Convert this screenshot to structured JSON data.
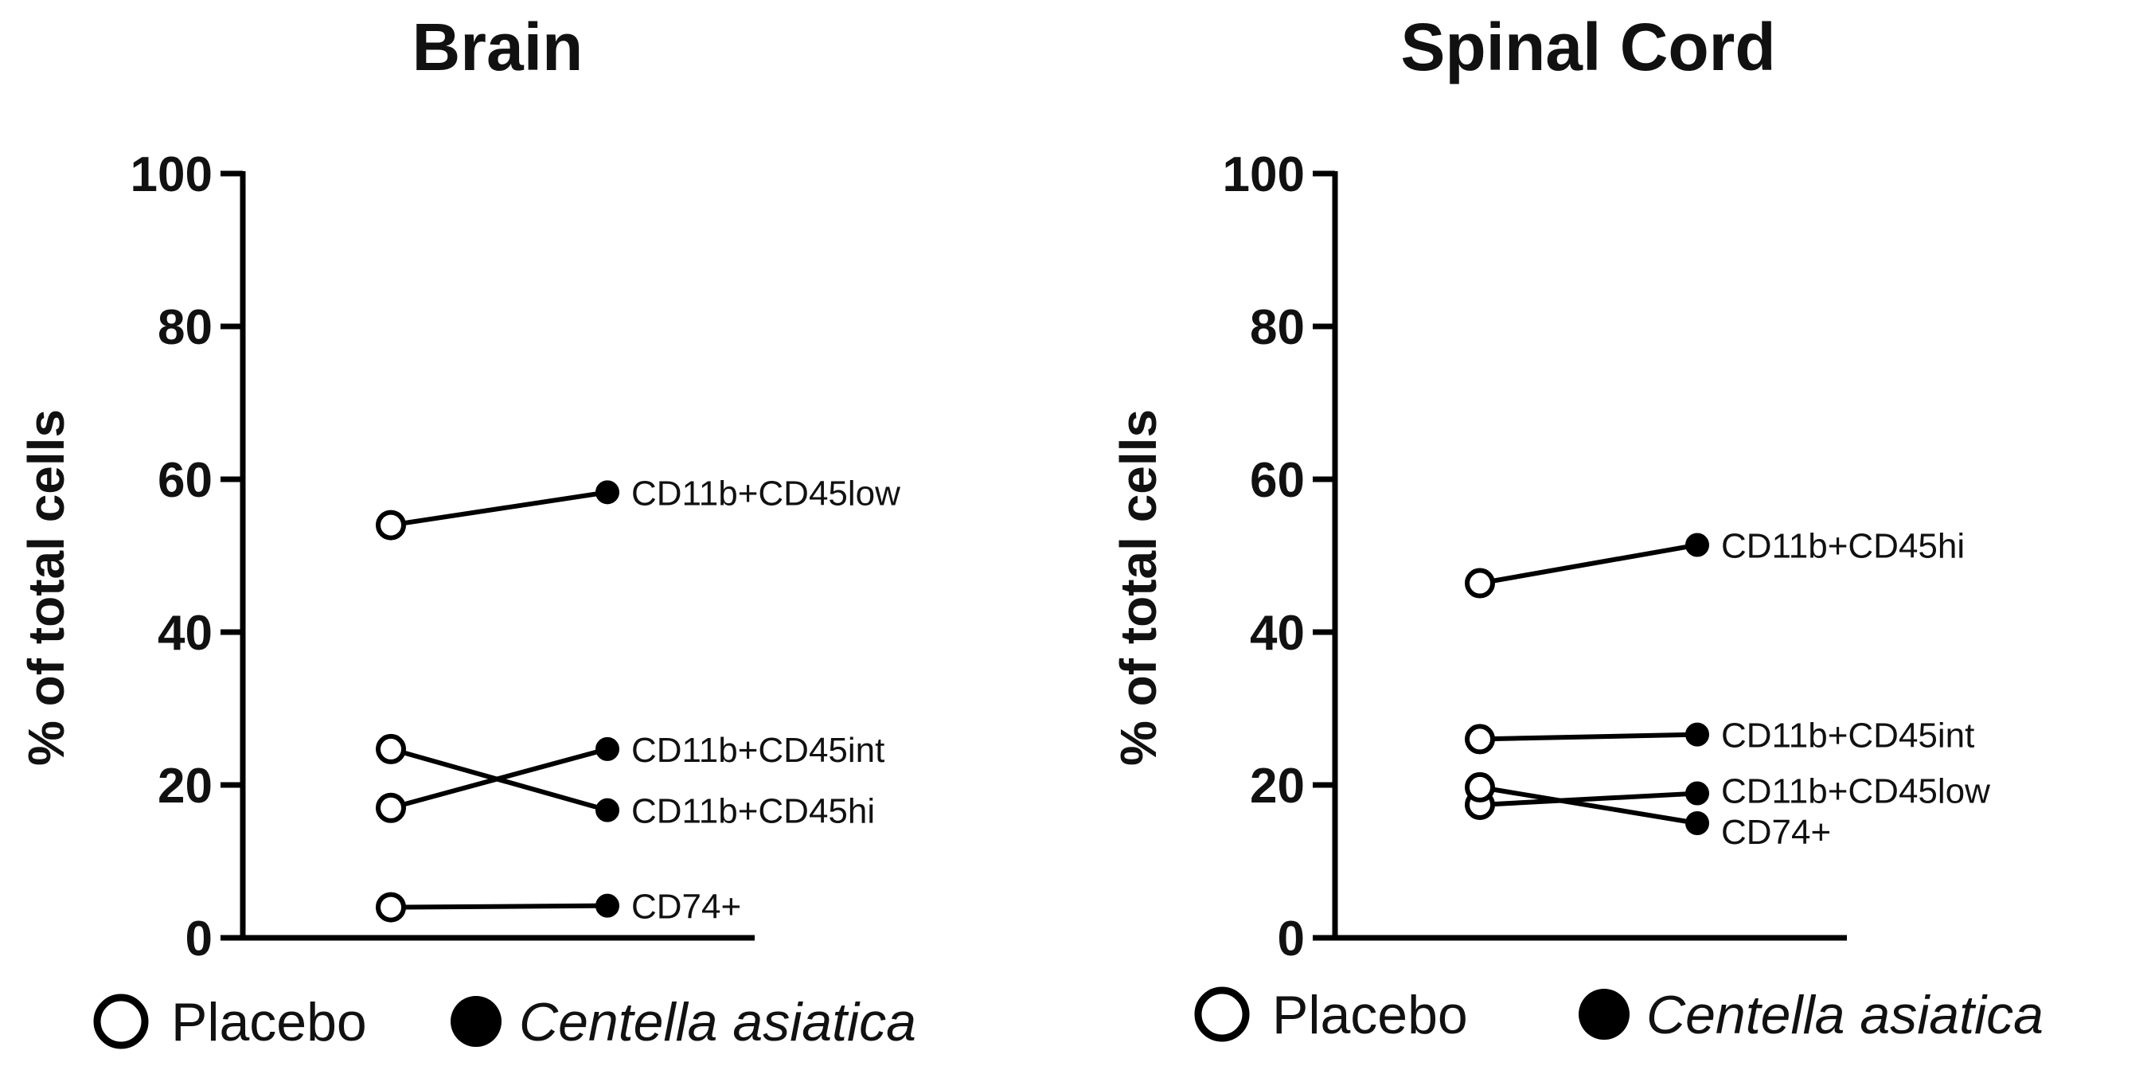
{
  "chart_data": [
    {
      "type": "line",
      "title": "Brain",
      "ylabel": "% of total cells",
      "xlabel": "",
      "ylim": [
        0,
        100
      ],
      "yticks": [
        0,
        20,
        40,
        60,
        80,
        100
      ],
      "groups": [
        "Placebo",
        "Centella asiatica"
      ],
      "series": [
        {
          "name": "CD11b+CD45low",
          "values": [
            54,
            58.3
          ]
        },
        {
          "name": "CD11b+CD45int",
          "values": [
            17,
            24.7
          ]
        },
        {
          "name": "CD11b+CD45hi",
          "values": [
            24.7,
            16.7
          ]
        },
        {
          "name": "CD74+",
          "values": [
            4,
            4.2
          ]
        }
      ],
      "legend": {
        "placement": "bottom",
        "entries": [
          {
            "label": "Placebo",
            "marker": "open-circle",
            "italic": false
          },
          {
            "label": "Centella asiatica",
            "marker": "filled-circle",
            "italic": true
          }
        ]
      }
    },
    {
      "type": "line",
      "title": "Spinal Cord",
      "ylabel": "% of total cells",
      "xlabel": "",
      "ylim": [
        0,
        100
      ],
      "yticks": [
        0,
        20,
        40,
        60,
        80,
        100
      ],
      "groups": [
        "Placebo",
        "Centella asiatica"
      ],
      "series": [
        {
          "name": "CD11b+CD45hi",
          "values": [
            46.4,
            51.4
          ]
        },
        {
          "name": "CD11b+CD45int",
          "values": [
            26,
            26.6
          ]
        },
        {
          "name": "CD11b+CD45low",
          "values": [
            17.4,
            18.9
          ]
        },
        {
          "name": "CD74+",
          "values": [
            19.7,
            15
          ]
        }
      ],
      "legend": {
        "placement": "bottom",
        "entries": [
          {
            "label": "Placebo",
            "marker": "open-circle",
            "italic": false
          },
          {
            "label": "Centella asiatica",
            "marker": "filled-circle",
            "italic": true
          }
        ]
      }
    }
  ]
}
